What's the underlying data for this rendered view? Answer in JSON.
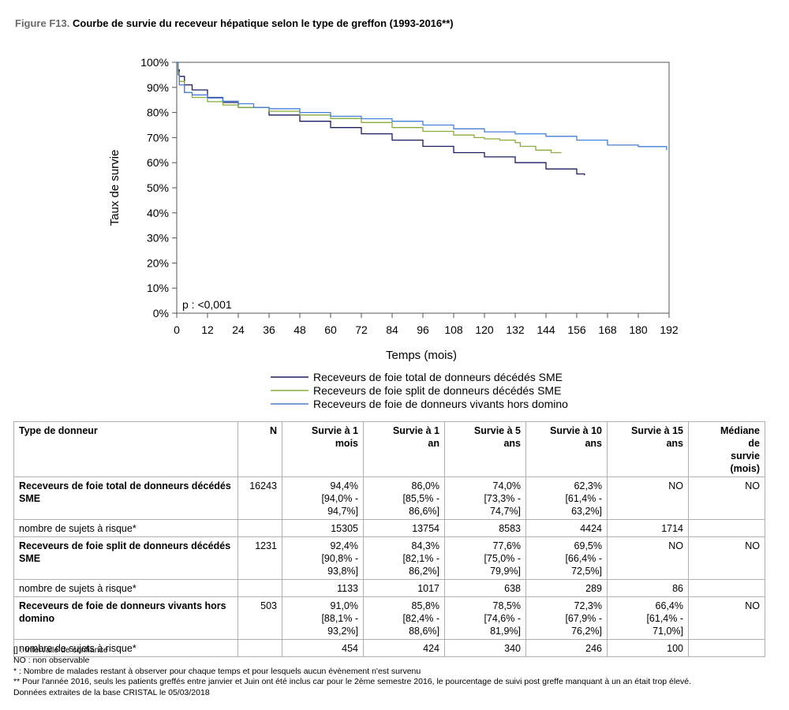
{
  "figure": {
    "label": "Figure F13.",
    "title": "Courbe de survie du receveur hépatique selon le type de greffon (1993-2016**)"
  },
  "chart_data": {
    "type": "line",
    "title": "",
    "xlabel": "Temps (mois)",
    "ylabel": "Taux de survie",
    "xlim": [
      0,
      192
    ],
    "ylim": [
      0,
      100
    ],
    "x_ticks": [
      "0",
      "12",
      "24",
      "36",
      "48",
      "60",
      "72",
      "84",
      "96",
      "108",
      "120",
      "132",
      "144",
      "156",
      "168",
      "180",
      "192"
    ],
    "y_ticks": [
      "0%",
      "10%",
      "20%",
      "30%",
      "40%",
      "50%",
      "60%",
      "70%",
      "80%",
      "90%",
      "100%"
    ],
    "annotation": "p : <0,001",
    "legend_position": "bottom",
    "grid": false,
    "series": [
      {
        "name": "Receveurs de foie total de donneurs décédés SME",
        "color": "#1b1b5e",
        "x": [
          0,
          0.5,
          1,
          3,
          6,
          12,
          18,
          24,
          36,
          48,
          60,
          72,
          84,
          96,
          108,
          120,
          132,
          144,
          156,
          159
        ],
        "y": [
          100,
          97,
          94.4,
          91,
          89,
          86,
          84,
          82,
          79,
          76.5,
          74,
          71.5,
          69,
          66.5,
          64,
          62.3,
          60,
          57.5,
          55.5,
          55
        ]
      },
      {
        "name": "Receveurs de foie split de donneurs décédés SME",
        "color": "#8aac3e",
        "x": [
          0,
          0.5,
          1,
          3,
          6,
          12,
          18,
          24,
          36,
          48,
          60,
          72,
          84,
          96,
          108,
          116,
          120,
          126,
          132,
          134,
          140,
          146,
          150
        ],
        "y": [
          100,
          96,
          92.4,
          88,
          86,
          84.3,
          83,
          82,
          80.5,
          79,
          77.6,
          76,
          74,
          72.5,
          71,
          70,
          69.5,
          69,
          68,
          66.5,
          65,
          64,
          64
        ]
      },
      {
        "name": "Receveurs de foie de donneurs vivants hors domino",
        "color": "#4a7fd9",
        "x": [
          0,
          0.5,
          1,
          3,
          6,
          12,
          18,
          24,
          30,
          36,
          48,
          60,
          72,
          84,
          96,
          108,
          120,
          132,
          144,
          156,
          168,
          180,
          188,
          191
        ],
        "y": [
          100,
          95,
          91,
          88,
          87,
          85.8,
          84.5,
          83.5,
          82,
          81.5,
          80,
          78.5,
          77.5,
          76.5,
          75,
          73.5,
          72.3,
          71.5,
          70.5,
          69,
          67,
          66.4,
          66.4,
          65
        ]
      }
    ]
  },
  "table": {
    "headers": [
      "Type de donneur",
      "N",
      "Survie à 1\nmois",
      "Survie à 1\nan",
      "Survie à 5\nans",
      "Survie à 10\nans",
      "Survie à 15\nans",
      "Médiane\nde\nsurvie\n(mois)"
    ],
    "rows": [
      {
        "name": "Receveurs de foie total de donneurs décédés SME",
        "n": "16243",
        "cells": [
          "94,4%\n[94,0% -\n94,7%]",
          "86,0%\n[85,5% -\n86,6%]",
          "74,0%\n[73,3% -\n74,7%]",
          "62,3%\n[61,4% -\n63,2%]",
          "NO",
          "NO"
        ],
        "risk_label": "nombre de sujets à risque*",
        "risk": [
          "15305",
          "13754",
          "8583",
          "4424",
          "1714",
          ""
        ]
      },
      {
        "name": "Receveurs de foie split de donneurs décédés SME",
        "n": "1231",
        "cells": [
          "92,4%\n[90,8% -\n93,8%]",
          "84,3%\n[82,1% -\n86,2%]",
          "77,6%\n[75,0% -\n79,9%]",
          "69,5%\n[66,4% -\n72,5%]",
          "NO",
          "NO"
        ],
        "risk_label": "nombre de sujets à risque*",
        "risk": [
          "1133",
          "1017",
          "638",
          "289",
          "86",
          ""
        ]
      },
      {
        "name": "Receveurs de foie de donneurs vivants hors domino",
        "n": "503",
        "cells": [
          "91,0%\n[88,1% -\n93,2%]",
          "85,8%\n[82,4% -\n88,6%]",
          "78,5%\n[74,6% -\n81,9%]",
          "72,3%\n[67,9% -\n76,2%]",
          "66,4%\n[61,4% -\n71,0%]",
          "NO"
        ],
        "risk_label": "nombre de sujets à risque*",
        "risk": [
          "454",
          "424",
          "340",
          "246",
          "100",
          ""
        ]
      }
    ]
  },
  "footnotes": [
    "[] : Intervalle de confiance",
    "NO : non observable",
    "* : Nombre de malades restant à observer pour chaque temps et pour lesquels aucun évènement n'est survenu",
    "** Pour l'année 2016, seuls les patients greffés entre janvier et Juin ont été inclus car pour le 2ème semestre 2016, le pourcentage de suivi post greffe manquant à un an était trop élevé.",
    "Données extraites de la base CRISTAL le 05/03/2018"
  ]
}
